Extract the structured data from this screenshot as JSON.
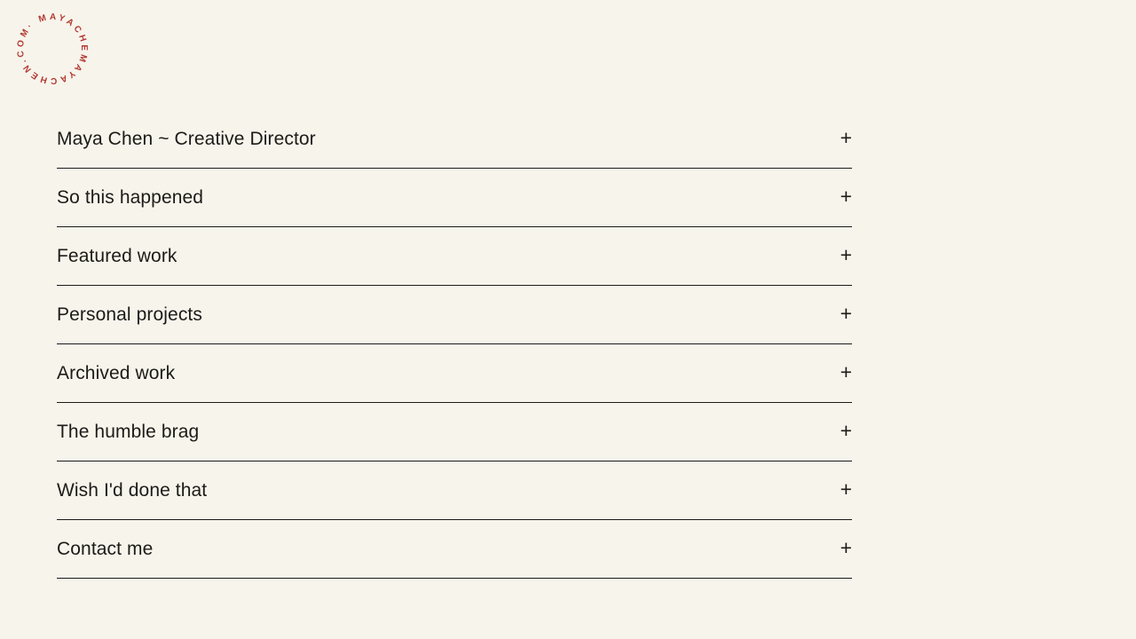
{
  "page": {
    "background_color": "#f7f4ec",
    "text_color": "#1d1b17",
    "divider_color": "#1d1b17"
  },
  "logo": {
    "ring_text": "· MAYACHEMAYACHEN.COM",
    "color": "#b23a31"
  },
  "accordion": {
    "expand_symbol": "+",
    "items": [
      {
        "id": "maya-chen-creative-director",
        "label": "Maya Chen ~ Creative Director"
      },
      {
        "id": "so-this-happened",
        "label": "So this happened"
      },
      {
        "id": "featured-work",
        "label": "Featured work"
      },
      {
        "id": "personal-projects",
        "label": "Personal projects"
      },
      {
        "id": "archived-work",
        "label": "Archived work"
      },
      {
        "id": "the-humble-brag",
        "label": "The humble brag"
      },
      {
        "id": "wish-id-done-that",
        "label": "Wish I'd done that"
      },
      {
        "id": "contact-me",
        "label": "Contact me"
      }
    ]
  }
}
